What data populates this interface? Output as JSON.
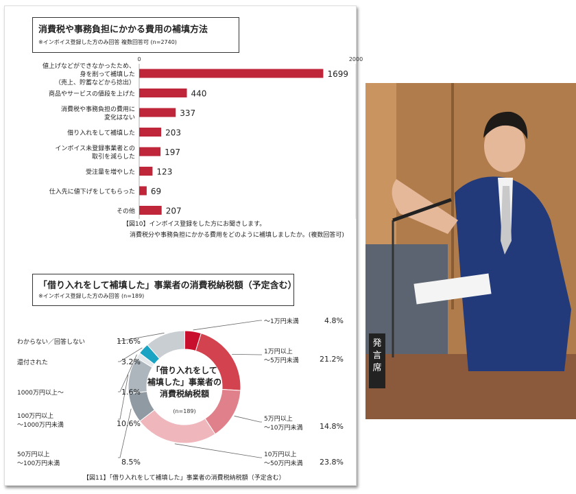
{
  "chart_data": [
    {
      "type": "bar",
      "title": "消費税や事務負担にかかる費用の補填方法",
      "subtitle": "※インボイス登録した方のみ回答 複数回答可 (n=2740)",
      "categories": [
        [
          "値上げなどができなかったため、",
          "身を削って補填した",
          "（売上、貯蓄などから捻出）"
        ],
        [
          "商品やサービスの値段を上げた"
        ],
        [
          "消費税や事務負担の費用に",
          "変化はない"
        ],
        [
          "借り入れをして補填した"
        ],
        [
          "インボイス未登録事業者との",
          "取引を減らした"
        ],
        [
          "受注量を増やした"
        ],
        [
          "仕入先に値下げをしてもらった"
        ],
        [
          "その他"
        ]
      ],
      "values": [
        1699,
        440,
        337,
        203,
        197,
        123,
        69,
        207
      ],
      "xlim": [
        0,
        2000
      ],
      "ticks": [
        "0",
        "2000"
      ],
      "bar_color": "#c0263a",
      "caption": [
        "【図10】インボイス登録をした方にお聞きします。",
        "消費税分や事務負担にかかる費用をどのように補填しましたか。(複数回答可)"
      ]
    },
    {
      "type": "pie",
      "title": "「借り入れをして補填した」事業者の消費税納税額（予定含む）",
      "subtitle": "※インボイス登録した方のみ回答 (n=189)",
      "center_label": [
        "「借り入れをして",
        "補填した」事業者の",
        "消費税納税額"
      ],
      "center_n": "(n=189)",
      "slices": [
        {
          "label": [
            "～1万円未満"
          ],
          "value": "4.8%",
          "pct": 4.8,
          "color": "#c8102e"
        },
        {
          "label": [
            "1万円以上",
            "～5万円未満"
          ],
          "value": "21.2%",
          "pct": 21.2,
          "color": "#d2434f"
        },
        {
          "label": [
            "5万円以上",
            "～10万円未満"
          ],
          "value": "14.8%",
          "pct": 14.8,
          "color": "#e0808a"
        },
        {
          "label": [
            "10万円以上",
            "～50万円未満"
          ],
          "value": "23.8%",
          "pct": 23.8,
          "color": "#efb6bc"
        },
        {
          "label": [
            "50万円以上",
            "～100万円未満"
          ],
          "value": "8.5%",
          "pct": 8.5,
          "color": "#8f9aa3"
        },
        {
          "label": [
            "100万円以上",
            "～1000万円未満"
          ],
          "value": "10.6%",
          "pct": 10.6,
          "color": "#adb6bd"
        },
        {
          "label": [
            "1000万円以上～"
          ],
          "value": "1.6%",
          "pct": 1.6,
          "color": "#e5e8ea"
        },
        {
          "label": [
            "還付された"
          ],
          "value": "3.2%",
          "pct": 3.2,
          "color": "#1aa3c2"
        },
        {
          "label": [
            "わからない／回答しない"
          ],
          "value": "11.6%",
          "pct": 11.6,
          "color": "#c9ced3"
        }
      ],
      "caption": "【図11】「借り入れをして補填した」事業者の消費税納税額（予定含む）"
    }
  ],
  "photo": {
    "nameplate": [
      "発",
      "言",
      "席"
    ],
    "colors": {
      "wall": "#b88452",
      "suit": "#223a7a",
      "desk": "#8b5a3c"
    }
  }
}
